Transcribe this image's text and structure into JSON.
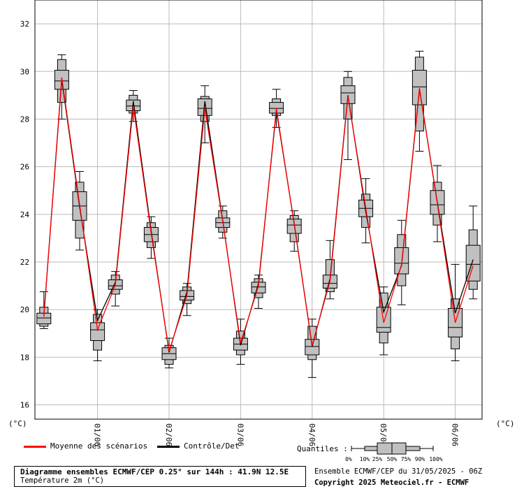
{
  "chart_data": {
    "type": "boxplot",
    "y_unit_left": "(°C)",
    "y_unit_right": "(°C)",
    "ylim": [
      15.4,
      33.0
    ],
    "y_ticks": [
      16,
      18,
      20,
      22,
      24,
      26,
      28,
      30,
      32
    ],
    "x_tick_labels": [
      "01/06",
      "02/06",
      "03/06",
      "04/06",
      "05/06",
      "06/06"
    ],
    "grid": true,
    "boxes": [
      {
        "p0": 19.2,
        "p10": 19.3,
        "p25": 19.4,
        "p50": 19.65,
        "p75": 19.85,
        "p90": 20.1,
        "p100": 20.75
      },
      {
        "p0": 28.0,
        "p10": 28.7,
        "p25": 29.25,
        "p50": 29.6,
        "p75": 30.05,
        "p90": 30.5,
        "p100": 30.7
      },
      {
        "p0": 22.5,
        "p10": 23.0,
        "p25": 23.75,
        "p50": 24.35,
        "p75": 24.95,
        "p90": 25.35,
        "p100": 25.8
      },
      {
        "p0": 17.85,
        "p10": 18.3,
        "p25": 18.7,
        "p50": 19.15,
        "p75": 19.45,
        "p90": 19.8,
        "p100": 20.0
      },
      {
        "p0": 20.15,
        "p10": 20.65,
        "p25": 20.85,
        "p50": 21.0,
        "p75": 21.25,
        "p90": 21.45,
        "p100": 21.6
      },
      {
        "p0": 27.9,
        "p10": 28.25,
        "p25": 28.35,
        "p50": 28.55,
        "p75": 28.8,
        "p90": 29.0,
        "p100": 29.2
      },
      {
        "p0": 22.15,
        "p10": 22.6,
        "p25": 22.85,
        "p50": 23.15,
        "p75": 23.45,
        "p90": 23.65,
        "p100": 23.9
      },
      {
        "p0": 17.55,
        "p10": 17.7,
        "p25": 17.9,
        "p50": 18.15,
        "p75": 18.4,
        "p90": 18.5,
        "p100": 18.8
      },
      {
        "p0": 19.75,
        "p10": 20.25,
        "p25": 20.4,
        "p50": 20.55,
        "p75": 20.8,
        "p90": 20.95,
        "p100": 21.1
      },
      {
        "p0": 27.0,
        "p10": 27.9,
        "p25": 28.15,
        "p50": 28.45,
        "p75": 28.85,
        "p90": 28.95,
        "p100": 29.4
      },
      {
        "p0": 23.0,
        "p10": 23.25,
        "p25": 23.45,
        "p50": 23.65,
        "p75": 23.85,
        "p90": 24.15,
        "p100": 24.35
      },
      {
        "p0": 17.7,
        "p10": 18.1,
        "p25": 18.3,
        "p50": 18.55,
        "p75": 18.8,
        "p90": 19.1,
        "p100": 19.6
      },
      {
        "p0": 20.05,
        "p10": 20.5,
        "p25": 20.7,
        "p50": 20.95,
        "p75": 21.15,
        "p90": 21.3,
        "p100": 21.45
      },
      {
        "p0": 27.65,
        "p10": 28.15,
        "p25": 28.25,
        "p50": 28.45,
        "p75": 28.7,
        "p90": 28.85,
        "p100": 29.25
      },
      {
        "p0": 22.45,
        "p10": 22.85,
        "p25": 23.2,
        "p50": 23.55,
        "p75": 23.8,
        "p90": 23.95,
        "p100": 24.15
      },
      {
        "p0": 17.15,
        "p10": 17.9,
        "p25": 18.1,
        "p50": 18.45,
        "p75": 18.75,
        "p90": 19.3,
        "p100": 19.6
      },
      {
        "p0": 20.45,
        "p10": 20.75,
        "p25": 20.9,
        "p50": 21.1,
        "p75": 21.45,
        "p90": 22.1,
        "p100": 22.9
      },
      {
        "p0": 26.3,
        "p10": 28.0,
        "p25": 28.65,
        "p50": 29.1,
        "p75": 29.4,
        "p90": 29.75,
        "p100": 30.0
      },
      {
        "p0": 22.8,
        "p10": 23.45,
        "p25": 23.9,
        "p50": 24.25,
        "p75": 24.6,
        "p90": 24.85,
        "p100": 25.5
      },
      {
        "p0": 18.1,
        "p10": 18.6,
        "p25": 19.05,
        "p50": 19.25,
        "p75": 20.1,
        "p90": 20.7,
        "p100": 20.95
      },
      {
        "p0": 20.2,
        "p10": 21.0,
        "p25": 21.5,
        "p50": 21.95,
        "p75": 22.6,
        "p90": 23.15,
        "p100": 23.75
      },
      {
        "p0": 26.65,
        "p10": 27.5,
        "p25": 28.6,
        "p50": 29.35,
        "p75": 30.05,
        "p90": 30.6,
        "p100": 30.85
      },
      {
        "p0": 22.85,
        "p10": 23.55,
        "p25": 24.0,
        "p50": 24.4,
        "p75": 25.0,
        "p90": 25.35,
        "p100": 26.05
      },
      {
        "p0": 17.85,
        "p10": 18.35,
        "p25": 18.85,
        "p50": 19.25,
        "p75": 20.05,
        "p90": 20.45,
        "p100": 21.9
      },
      {
        "p0": 20.45,
        "p10": 20.85,
        "p25": 21.2,
        "p50": 21.9,
        "p75": 22.7,
        "p90": 23.35,
        "p100": 24.35
      }
    ],
    "series": [
      {
        "name": "Moyenne des scénarios",
        "color": "#ff0000",
        "values": [
          19.7,
          29.75,
          24.4,
          19.15,
          21.05,
          28.55,
          23.2,
          18.25,
          20.6,
          28.45,
          23.7,
          18.6,
          21.0,
          28.45,
          23.55,
          18.5,
          21.2,
          28.95,
          24.25,
          19.45,
          21.9,
          29.3,
          24.45,
          19.45,
          21.85
        ]
      },
      {
        "name": "Contrôle/Det",
        "color": "#000000",
        "values": [
          19.75,
          29.65,
          24.3,
          19.55,
          21.15,
          28.75,
          23.3,
          18.2,
          20.75,
          28.75,
          23.75,
          18.5,
          21.1,
          28.35,
          23.6,
          18.45,
          21.3,
          29.0,
          24.1,
          19.9,
          21.85,
          29.25,
          24.5,
          19.85,
          22.1
        ]
      }
    ]
  },
  "legend": {
    "mean_label": "Moyenne des scénarios",
    "control_label": "Contrôle/Det",
    "quantiles_label": "Quantiles :",
    "quantile_ticks": [
      "0%",
      "10%",
      "25%",
      "50%",
      "75%",
      "90%",
      "100%"
    ]
  },
  "footer": {
    "title": "Diagramme ensembles ECMWF/CEP 0.25° sur 144h : 41.9N 12.5E",
    "subtitle": "Température 2m (°C)",
    "run_info": "Ensemble ECMWF/CEP du 31/05/2025 - 06Z",
    "copyright": "Copyright 2025 Meteociel.fr - ECMWF"
  },
  "colors": {
    "box_fill": "#c0c0c0",
    "grid": "#bbbbbb",
    "mean_line": "#ff0000",
    "control_line": "#000000"
  }
}
